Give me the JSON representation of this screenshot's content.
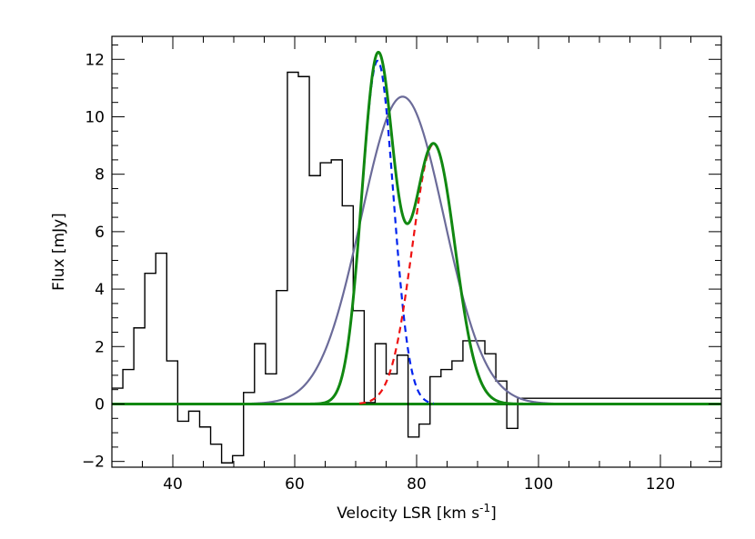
{
  "chart_data": {
    "type": "line",
    "xlabel": "Velocity LSR [km s",
    "xlabel_superscript": "-1",
    "xlabel_suffix": "]",
    "ylabel": "Flux [mJy]",
    "xlim": [
      30,
      130
    ],
    "ylim": [
      -2.2,
      12.8
    ],
    "x_ticks": [
      40,
      60,
      80,
      100,
      120
    ],
    "y_ticks": [
      -2,
      0,
      2,
      4,
      6,
      8,
      10,
      12
    ],
    "x_minor_step": 5,
    "y_minor_step": 0.5,
    "grid": false,
    "legend": "none",
    "zero_line": 0,
    "colors": {
      "histogram": "#000000",
      "broad": "#6b6b99",
      "component1": "#0022ee",
      "component2": "#ee1111",
      "total": "#118811"
    },
    "histogram": {
      "edges": [
        30,
        31.8,
        33.6,
        35.4,
        37.2,
        39,
        40.8,
        42.6,
        44.4,
        46.2,
        48,
        49.8,
        51.6,
        53.4,
        55.2,
        57,
        58.8,
        60.6,
        62.4,
        64.2,
        66,
        67.8,
        69.6,
        71.4,
        73.2,
        75,
        76.8,
        78.6,
        80.4,
        82.2,
        84,
        85.8,
        87.6,
        89.4,
        91.2,
        93,
        94.8,
        96.6,
        98.4,
        100.2,
        102,
        103.8,
        105.6,
        107.4,
        109.2,
        111,
        112.8,
        114.6,
        116.4,
        118.2,
        120,
        121.8,
        123.6,
        125.4,
        127.2,
        129,
        130
      ],
      "values": [
        0.55,
        1.2,
        2.65,
        4.55,
        5.25,
        1.5,
        -0.6,
        -0.25,
        -0.8,
        -1.4,
        -2.05,
        -1.8,
        0.4,
        2.1,
        1.05,
        3.95,
        11.55,
        11.4,
        7.95,
        8.4,
        8.5,
        6.9,
        3.25,
        0.05,
        2.1,
        1.05,
        1.7,
        -1.15,
        -0.7,
        0.95,
        1.2,
        1.5,
        2.2,
        2.2,
        1.75,
        0.8,
        -0.85,
        0.2,
        0.2,
        0.2,
        0.2,
        0.2,
        0.2,
        0.2,
        0.2,
        0.2,
        0.2,
        0.2,
        0.2,
        0.2,
        0.2,
        0.2,
        0.2,
        0.2,
        0.2,
        0.2
      ]
    },
    "series": [
      {
        "style": "solid",
        "color_key": "broad",
        "model": "gaussian",
        "amplitude": 10.7,
        "center": 77.7,
        "sigma": 6.8
      },
      {
        "style": "dashed",
        "color_key": "component1",
        "model": "gaussian",
        "amplitude": 11.95,
        "center": 73.6,
        "sigma": 2.6
      },
      {
        "style": "dashed",
        "color_key": "component2",
        "model": "gaussian",
        "amplitude": 9.05,
        "center": 82.8,
        "sigma": 3.5
      },
      {
        "style": "solid",
        "color_key": "total",
        "model": "sum_of_components",
        "components": [
          1,
          2
        ]
      }
    ]
  }
}
